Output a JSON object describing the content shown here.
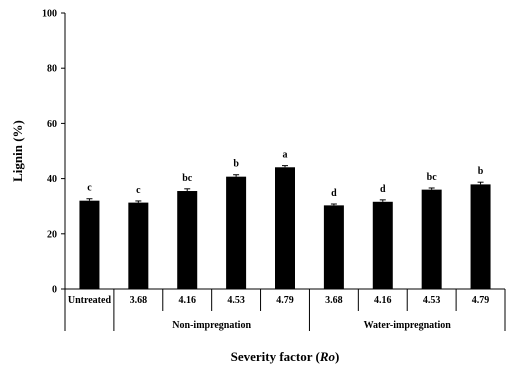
{
  "chart_data": {
    "type": "bar",
    "title": "",
    "ylabel": "Lignin (%)",
    "xlabel": "Severity factor (Ro)",
    "xlabel_parts": [
      {
        "text": "Severity factor (",
        "italic": false
      },
      {
        "text": "Ro",
        "italic": true
      },
      {
        "text": ")",
        "italic": false
      }
    ],
    "ylim": [
      0,
      100
    ],
    "yticks": [
      0,
      20,
      40,
      60,
      80,
      100
    ],
    "grid": false,
    "bar_color": "#000000",
    "categories": [
      "Untreated",
      "3.68",
      "4.16",
      "4.53",
      "4.79",
      "3.68",
      "4.16",
      "4.53",
      "4.79"
    ],
    "values": [
      32.0,
      31.3,
      35.5,
      40.7,
      44.1,
      30.3,
      31.6,
      36.0,
      37.9
    ],
    "errors": [
      0.7,
      0.6,
      0.8,
      0.7,
      0.6,
      0.5,
      0.7,
      0.6,
      0.8
    ],
    "significance_letters": [
      "c",
      "c",
      "bc",
      "b",
      "a",
      "d",
      "d",
      "bc",
      "b"
    ],
    "groups": [
      {
        "label": "",
        "start": 0,
        "end": 0
      },
      {
        "label": "Non-impregnation",
        "start": 1,
        "end": 4
      },
      {
        "label": "Water-impregnation",
        "start": 5,
        "end": 8
      }
    ]
  }
}
